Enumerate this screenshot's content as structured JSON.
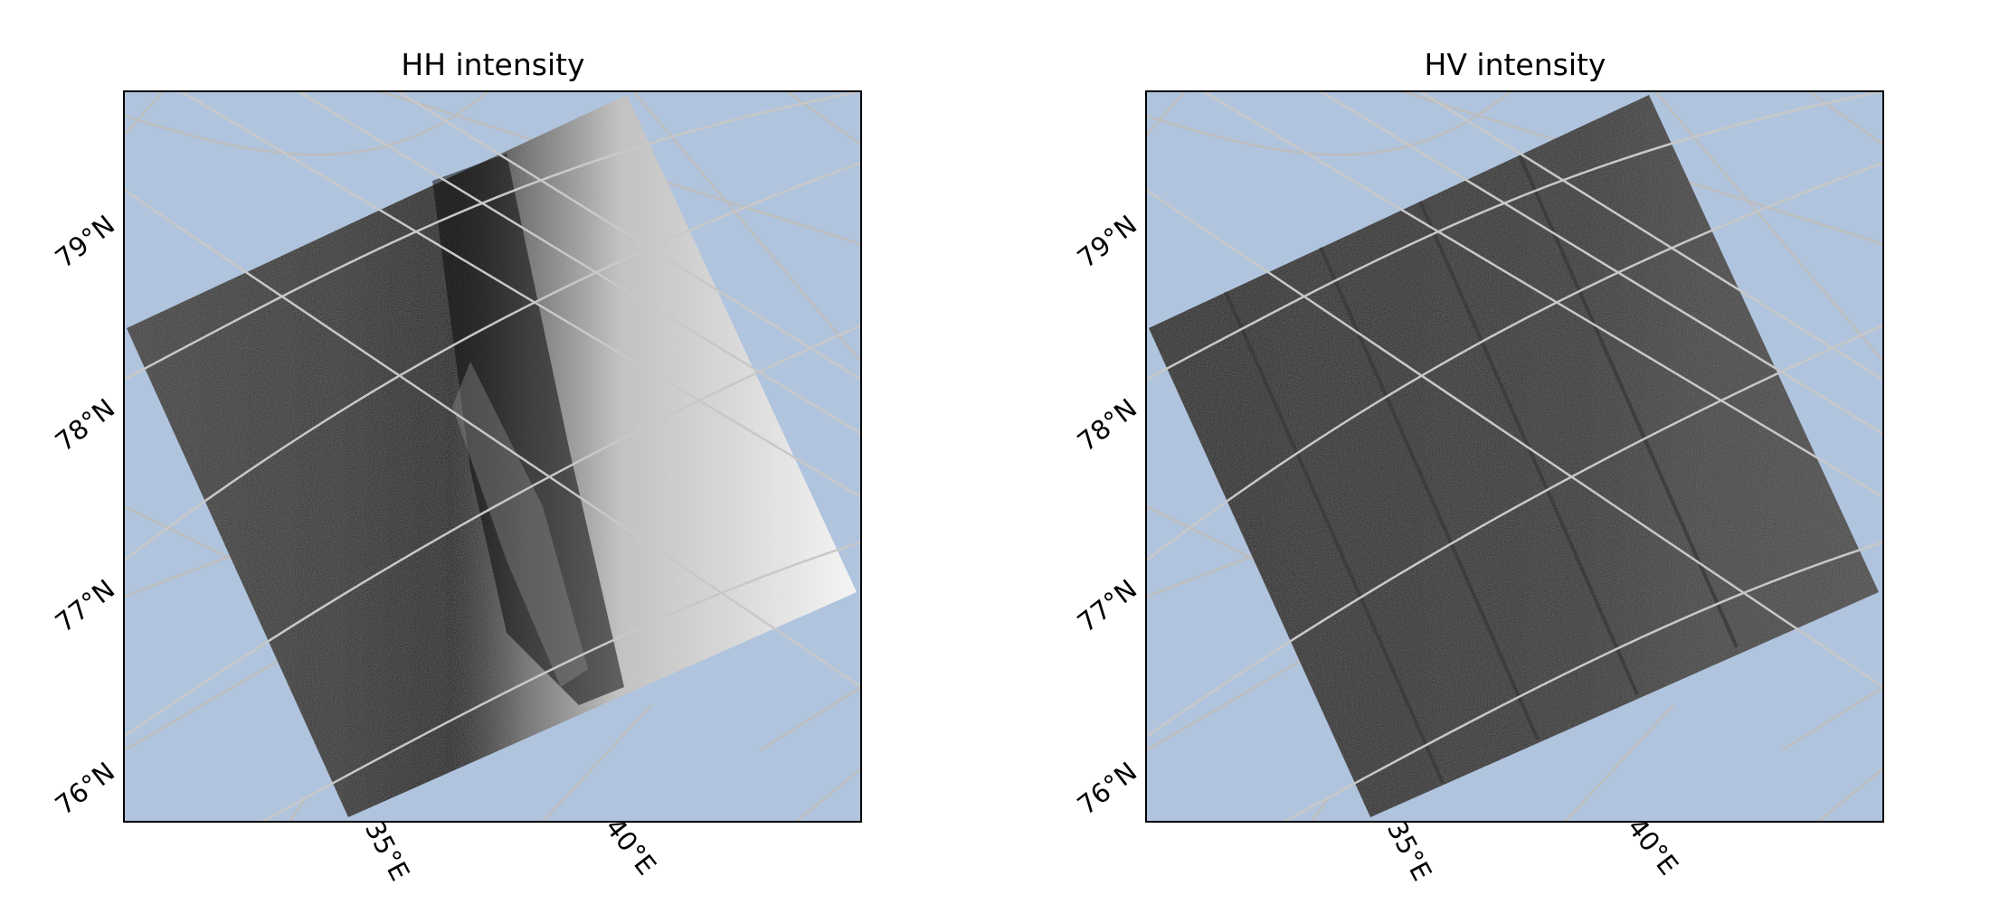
{
  "colors": {
    "ocean": "#b0c4de",
    "gridline": "#bdbdbd",
    "frame": "#000000"
  },
  "panels": [
    {
      "title": "HH intensity",
      "band": "HH",
      "lat_labels": [
        "79°N",
        "78°N",
        "77°N",
        "76°N"
      ],
      "lon_labels": [
        "35°E",
        "40°E"
      ]
    },
    {
      "title": "HV intensity",
      "band": "HV",
      "lat_labels": [
        "79°N",
        "78°N",
        "77°N",
        "76°N"
      ],
      "lon_labels": [
        "35°E",
        "40°E"
      ]
    }
  ]
}
